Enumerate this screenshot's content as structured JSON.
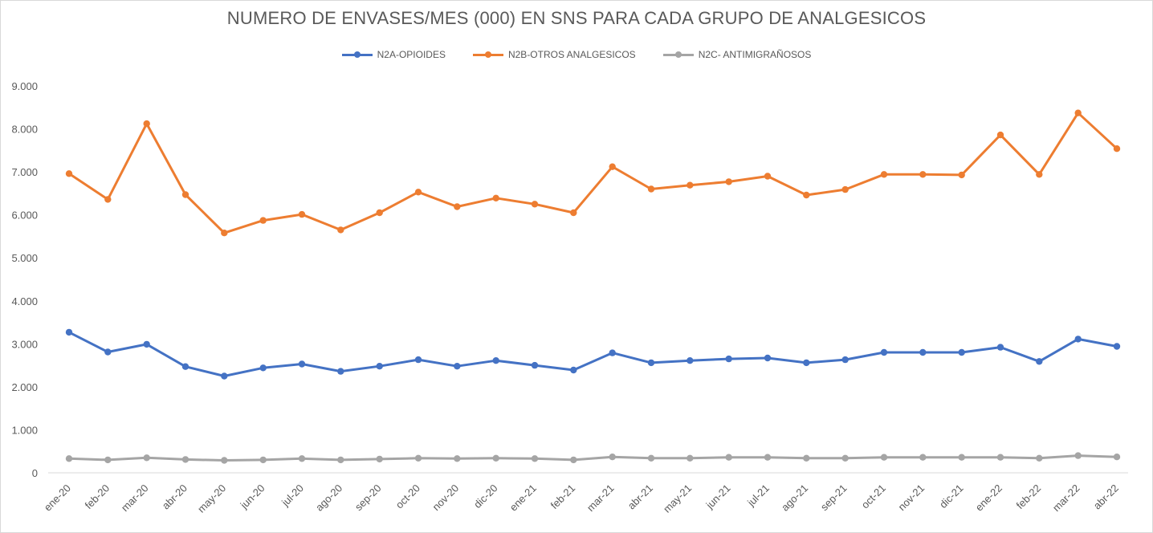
{
  "chart_data": {
    "type": "line",
    "title": "NUMERO DE ENVASES/MES (000) EN SNS PARA CADA GRUPO DE ANALGESICOS",
    "xlabel": "",
    "ylabel": "",
    "ylim": [
      0,
      9000
    ],
    "yticks": [
      "0",
      "1.000",
      "2.000",
      "3.000",
      "4.000",
      "5.000",
      "6.000",
      "7.000",
      "8.000",
      "9.000"
    ],
    "ytick_values": [
      0,
      1000,
      2000,
      3000,
      4000,
      5000,
      6000,
      7000,
      8000,
      9000
    ],
    "grid": false,
    "legend_position": "top",
    "categories": [
      "ene-20",
      "feb-20",
      "mar-20",
      "abr-20",
      "may-20",
      "jun-20",
      "jul-20",
      "ago-20",
      "sep-20",
      "oct-20",
      "nov-20",
      "dic-20",
      "ene-21",
      "feb-21",
      "mar-21",
      "abr-21",
      "may-21",
      "jun-21",
      "jul-21",
      "ago-21",
      "sep-21",
      "oct-21",
      "nov-21",
      "dic-21",
      "ene-22",
      "feb-22",
      "mar-22",
      "abr-22"
    ],
    "series": [
      {
        "name": "N2A-OPIOIDES",
        "color": "#4472c4",
        "values": [
          3270,
          2810,
          2990,
          2470,
          2250,
          2440,
          2530,
          2360,
          2480,
          2630,
          2480,
          2610,
          2500,
          2390,
          2790,
          2560,
          2610,
          2650,
          2670,
          2560,
          2630,
          2800,
          2800,
          2800,
          2920,
          2590,
          3110,
          2940
        ]
      },
      {
        "name": "N2B-OTROS ANALGESICOS",
        "color": "#ed7d31",
        "values": [
          6960,
          6360,
          8120,
          6470,
          5580,
          5870,
          6010,
          5650,
          6050,
          6530,
          6190,
          6390,
          6250,
          6050,
          7120,
          6600,
          6690,
          6770,
          6900,
          6460,
          6590,
          6940,
          6940,
          6930,
          7860,
          6940,
          8370,
          7540
        ]
      },
      {
        "name": "N2C- ANTIMIGRAÑOSOS",
        "color": "#a5a5a5",
        "values": [
          330,
          300,
          350,
          310,
          290,
          300,
          330,
          300,
          320,
          340,
          330,
          340,
          330,
          300,
          370,
          340,
          340,
          360,
          360,
          340,
          340,
          360,
          360,
          360,
          360,
          340,
          400,
          370
        ]
      }
    ]
  }
}
